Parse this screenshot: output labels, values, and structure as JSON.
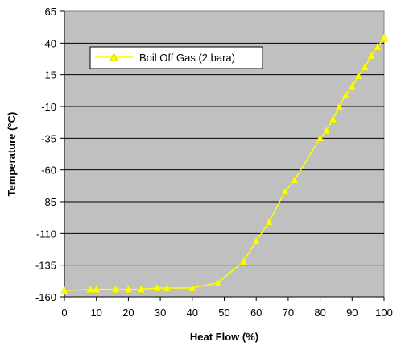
{
  "colors": {
    "plot_background": "#c0c0c0",
    "gridline": "#000000",
    "series": "#ffff00",
    "series_stroke": "#d8d800"
  },
  "chart_data": {
    "type": "line",
    "xlabel": "Heat Flow (%)",
    "ylabel": "Temperature (°C)",
    "xlim": [
      0,
      100
    ],
    "ylim": [
      -160,
      65
    ],
    "x_ticks": [
      0,
      10,
      20,
      30,
      40,
      50,
      60,
      70,
      80,
      90,
      100
    ],
    "y_ticks": [
      65,
      40,
      15,
      -10,
      -35,
      -60,
      -85,
      -110,
      -135,
      -160
    ],
    "grid": "horizontal",
    "legend_placement": "top-left",
    "series": [
      {
        "name": "Boil Off Gas (2 bara)",
        "marker": "triangle",
        "x": [
          0,
          8,
          10,
          16,
          20,
          24,
          29,
          32,
          40,
          48,
          56,
          60,
          64,
          69,
          72,
          80,
          82,
          84,
          86,
          88,
          90,
          92,
          94,
          96,
          98,
          100
        ],
        "y": [
          -155,
          -154,
          -154,
          -154,
          -154,
          -154,
          -153,
          -153,
          -153,
          -149,
          -132,
          -116,
          -101,
          -77,
          -68,
          -35,
          -29,
          -20,
          -10,
          -1,
          6,
          14,
          21,
          30,
          37,
          44
        ]
      }
    ]
  }
}
